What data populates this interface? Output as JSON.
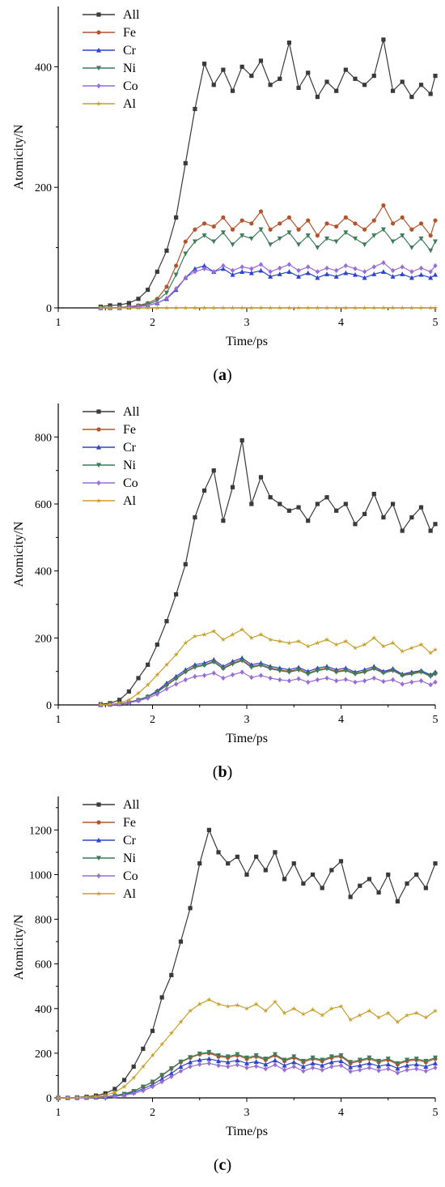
{
  "chart_data": [
    {
      "type": "line",
      "caption": {
        "open": "(",
        "letter": "a",
        "close": ")"
      },
      "xlabel": "Time/ps",
      "ylabel": "Atomicity/N",
      "xlim": [
        1,
        5
      ],
      "ylim": [
        0,
        500
      ],
      "x_ticks": [
        1,
        2,
        3,
        4,
        5
      ],
      "y_ticks": [
        0,
        200,
        400
      ],
      "grid": false,
      "legend": "top-left",
      "x": [
        1.45,
        1.55,
        1.65,
        1.75,
        1.85,
        1.95,
        2.05,
        2.15,
        2.25,
        2.35,
        2.45,
        2.55,
        2.65,
        2.75,
        2.85,
        2.95,
        3.05,
        3.15,
        3.25,
        3.35,
        3.45,
        3.55,
        3.65,
        3.75,
        3.85,
        3.95,
        4.05,
        4.15,
        4.25,
        4.35,
        4.45,
        4.55,
        4.65,
        4.75,
        4.85,
        4.95,
        5.0
      ],
      "series": [
        {
          "name": "All",
          "color": "#3a3a3a",
          "marker": "square",
          "values": [
            2,
            4,
            5,
            8,
            15,
            30,
            60,
            95,
            150,
            240,
            330,
            405,
            370,
            395,
            360,
            400,
            385,
            410,
            370,
            380,
            440,
            365,
            390,
            350,
            375,
            360,
            395,
            380,
            370,
            385,
            445,
            360,
            375,
            350,
            370,
            355,
            385
          ]
        },
        {
          "name": "Fe",
          "color": "#b5542c",
          "marker": "circle",
          "values": [
            0,
            0,
            1,
            2,
            4,
            8,
            15,
            35,
            70,
            110,
            130,
            140,
            135,
            150,
            130,
            145,
            140,
            160,
            130,
            140,
            150,
            130,
            145,
            120,
            140,
            135,
            150,
            140,
            130,
            145,
            170,
            140,
            150,
            130,
            140,
            120,
            145
          ]
        },
        {
          "name": "Cr",
          "color": "#2d46c8",
          "marker": "triangle-up",
          "values": [
            0,
            0,
            0,
            1,
            2,
            4,
            8,
            15,
            30,
            50,
            65,
            70,
            60,
            65,
            55,
            60,
            58,
            62,
            52,
            56,
            60,
            52,
            58,
            50,
            56,
            52,
            58,
            55,
            50,
            56,
            60,
            52,
            56,
            50,
            55,
            50,
            55
          ]
        },
        {
          "name": "Ni",
          "color": "#3e7c5a",
          "marker": "triangle-down",
          "values": [
            0,
            0,
            1,
            1,
            3,
            6,
            12,
            25,
            55,
            90,
            110,
            120,
            110,
            125,
            105,
            120,
            115,
            130,
            105,
            115,
            125,
            105,
            120,
            100,
            115,
            110,
            125,
            115,
            105,
            120,
            130,
            110,
            120,
            100,
            115,
            95,
            110
          ]
        },
        {
          "name": "Co",
          "color": "#9a6cd8",
          "marker": "diamond",
          "values": [
            0,
            0,
            0,
            1,
            2,
            4,
            8,
            16,
            32,
            50,
            60,
            65,
            60,
            70,
            62,
            68,
            65,
            72,
            60,
            66,
            72,
            62,
            68,
            60,
            66,
            62,
            70,
            65,
            60,
            68,
            75,
            62,
            68,
            60,
            66,
            60,
            70
          ]
        },
        {
          "name": "Al",
          "color": "#c8a028",
          "marker": "star",
          "values": [
            0,
            0,
            0,
            0,
            0,
            0,
            0,
            0,
            0,
            0,
            0,
            0,
            0,
            0,
            0,
            0,
            0,
            0,
            0,
            0,
            0,
            0,
            0,
            0,
            0,
            0,
            0,
            0,
            0,
            0,
            0,
            0,
            0,
            0,
            0,
            0,
            0
          ]
        }
      ]
    },
    {
      "type": "line",
      "caption": {
        "open": "(",
        "letter": "b",
        "close": ")"
      },
      "xlabel": "Time/ps",
      "ylabel": "Atomicity/N",
      "xlim": [
        1,
        5
      ],
      "ylim": [
        0,
        900
      ],
      "x_ticks": [
        1,
        2,
        3,
        4,
        5
      ],
      "y_ticks": [
        0,
        200,
        400,
        600,
        800
      ],
      "grid": false,
      "legend": "top-left",
      "x": [
        1.45,
        1.55,
        1.65,
        1.75,
        1.85,
        1.95,
        2.05,
        2.15,
        2.25,
        2.35,
        2.45,
        2.55,
        2.65,
        2.75,
        2.85,
        2.95,
        3.05,
        3.15,
        3.25,
        3.35,
        3.45,
        3.55,
        3.65,
        3.75,
        3.85,
        3.95,
        4.05,
        4.15,
        4.25,
        4.35,
        4.45,
        4.55,
        4.65,
        4.75,
        4.85,
        4.95,
        5.0
      ],
      "series": [
        {
          "name": "All",
          "color": "#3a3a3a",
          "marker": "square",
          "values": [
            2,
            5,
            15,
            40,
            80,
            120,
            180,
            250,
            330,
            420,
            560,
            640,
            700,
            550,
            650,
            790,
            600,
            680,
            620,
            600,
            580,
            590,
            550,
            600,
            620,
            580,
            600,
            540,
            570,
            630,
            560,
            600,
            520,
            560,
            590,
            520,
            540
          ]
        },
        {
          "name": "Fe",
          "color": "#b5542c",
          "marker": "circle",
          "values": [
            0,
            1,
            3,
            8,
            15,
            25,
            40,
            60,
            80,
            100,
            115,
            120,
            130,
            110,
            125,
            135,
            115,
            120,
            110,
            105,
            100,
            108,
            95,
            105,
            110,
            100,
            105,
            95,
            100,
            110,
            98,
            105,
            90,
            95,
            100,
            88,
            95
          ]
        },
        {
          "name": "Cr",
          "color": "#2d46c8",
          "marker": "triangle-up",
          "values": [
            0,
            1,
            3,
            8,
            15,
            25,
            42,
            65,
            85,
            105,
            120,
            125,
            135,
            115,
            130,
            140,
            120,
            125,
            115,
            110,
            105,
            112,
            100,
            110,
            115,
            105,
            110,
            98,
            105,
            115,
            100,
            108,
            92,
            98,
            102,
            90,
            98
          ]
        },
        {
          "name": "Ni",
          "color": "#3e7c5a",
          "marker": "triangle-down",
          "values": [
            0,
            1,
            3,
            7,
            14,
            24,
            38,
            58,
            78,
            98,
            112,
            118,
            128,
            108,
            122,
            132,
            112,
            118,
            108,
            102,
            98,
            104,
            92,
            102,
            108,
            98,
            102,
            92,
            98,
            108,
            95,
            102,
            88,
            92,
            98,
            85,
            92
          ]
        },
        {
          "name": "Co",
          "color": "#9a6cd8",
          "marker": "diamond",
          "values": [
            0,
            1,
            2,
            6,
            12,
            20,
            32,
            48,
            62,
            75,
            85,
            88,
            95,
            80,
            90,
            98,
            82,
            88,
            80,
            75,
            72,
            78,
            68,
            75,
            80,
            72,
            76,
            68,
            72,
            80,
            70,
            75,
            62,
            68,
            72,
            60,
            68
          ]
        },
        {
          "name": "Al",
          "color": "#c8a028",
          "marker": "star",
          "values": [
            0,
            2,
            6,
            15,
            35,
            60,
            90,
            120,
            150,
            185,
            205,
            210,
            220,
            195,
            210,
            225,
            200,
            210,
            195,
            190,
            185,
            190,
            175,
            185,
            195,
            180,
            190,
            170,
            180,
            200,
            175,
            185,
            160,
            170,
            180,
            155,
            165
          ]
        }
      ]
    },
    {
      "type": "line",
      "caption": {
        "open": "(",
        "letter": "c",
        "close": ")"
      },
      "xlabel": "Time/ps",
      "ylabel": "Atomicity/N",
      "xlim": [
        1,
        5
      ],
      "ylim": [
        0,
        1350
      ],
      "x_ticks": [
        1,
        2,
        3,
        4,
        5
      ],
      "y_ticks": [
        0,
        200,
        400,
        600,
        800,
        1000,
        1200
      ],
      "grid": false,
      "legend": "top-left",
      "x": [
        1.0,
        1.1,
        1.2,
        1.3,
        1.4,
        1.5,
        1.6,
        1.7,
        1.8,
        1.9,
        2.0,
        2.1,
        2.2,
        2.3,
        2.4,
        2.5,
        2.6,
        2.7,
        2.8,
        2.9,
        3.0,
        3.1,
        3.2,
        3.3,
        3.4,
        3.5,
        3.6,
        3.7,
        3.8,
        3.9,
        4.0,
        4.1,
        4.2,
        4.3,
        4.4,
        4.5,
        4.6,
        4.7,
        4.8,
        4.9,
        5.0
      ],
      "series": [
        {
          "name": "All",
          "color": "#3a3a3a",
          "marker": "square",
          "values": [
            0,
            0,
            2,
            5,
            10,
            20,
            40,
            80,
            140,
            220,
            300,
            450,
            550,
            700,
            850,
            1050,
            1200,
            1100,
            1050,
            1080,
            1000,
            1080,
            1020,
            1100,
            980,
            1050,
            960,
            1000,
            940,
            1020,
            1060,
            900,
            950,
            980,
            920,
            1000,
            880,
            960,
            1000,
            940,
            1050
          ]
        },
        {
          "name": "Fe",
          "color": "#b5542c",
          "marker": "circle",
          "values": [
            0,
            0,
            0,
            1,
            2,
            5,
            10,
            18,
            30,
            50,
            70,
            100,
            130,
            160,
            180,
            195,
            200,
            185,
            180,
            190,
            175,
            185,
            170,
            190,
            165,
            180,
            160,
            175,
            165,
            180,
            185,
            155,
            165,
            175,
            160,
            170,
            150,
            165,
            170,
            160,
            175
          ]
        },
        {
          "name": "Cr",
          "color": "#2d46c8",
          "marker": "triangle-up",
          "values": [
            0,
            0,
            0,
            1,
            2,
            4,
            8,
            15,
            25,
            40,
            60,
            85,
            110,
            140,
            160,
            170,
            175,
            165,
            160,
            168,
            155,
            162,
            150,
            168,
            145,
            160,
            140,
            155,
            145,
            160,
            165,
            138,
            145,
            155,
            142,
            150,
            132,
            145,
            150,
            140,
            155
          ]
        },
        {
          "name": "Ni",
          "color": "#3e7c5a",
          "marker": "triangle-down",
          "values": [
            0,
            0,
            0,
            1,
            2,
            5,
            10,
            18,
            30,
            50,
            72,
            102,
            132,
            162,
            182,
            198,
            205,
            190,
            185,
            195,
            180,
            190,
            175,
            195,
            170,
            185,
            165,
            180,
            170,
            185,
            190,
            160,
            170,
            180,
            165,
            175,
            155,
            170,
            175,
            165,
            180
          ]
        },
        {
          "name": "Co",
          "color": "#9a6cd8",
          "marker": "diamond",
          "values": [
            0,
            0,
            0,
            1,
            2,
            3,
            6,
            12,
            20,
            32,
            50,
            72,
            95,
            120,
            140,
            150,
            155,
            145,
            140,
            148,
            135,
            142,
            130,
            148,
            125,
            140,
            120,
            135,
            125,
            140,
            145,
            118,
            125,
            135,
            122,
            130,
            112,
            125,
            130,
            120,
            135
          ]
        },
        {
          "name": "Al",
          "color": "#c8a028",
          "marker": "star",
          "values": [
            0,
            0,
            1,
            3,
            6,
            12,
            25,
            50,
            90,
            140,
            190,
            240,
            290,
            340,
            390,
            420,
            440,
            420,
            410,
            415,
            400,
            420,
            390,
            430,
            380,
            400,
            375,
            395,
            370,
            400,
            410,
            350,
            370,
            390,
            360,
            380,
            340,
            370,
            380,
            360,
            390
          ]
        }
      ]
    }
  ]
}
